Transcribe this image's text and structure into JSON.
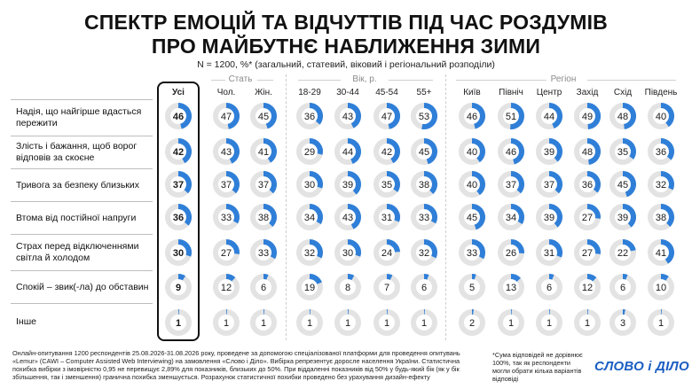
{
  "title_line1": "СПЕКТР ЕМОЦІЙ ТА ВІДЧУТТІВ ПІД ЧАС РОЗДУМІВ",
  "title_line2": "ПРО МАЙБУТНЄ НАБЛИЖЕННЯ ЗИМИ",
  "subtitle": "N = 1200, %* (загальний, статевий, віковий і регіональний розподіли)",
  "groups": {
    "sex": "Стать",
    "age": "Вік, р.",
    "region": "Регіон"
  },
  "footer_note": "Онлайн-опитування 1200 респондентів 25.08.2026-31.08.2026 року, проведене за допомогою спеціалізованої платформи для проведення опитувань «Lemur» (CAWI – Computer Assisted Web Interviewing) на замовлення «Слово і Діло». Вибірка репрезентує доросле населення України. Статистична похибка вибірки з імовірністю 0,95 не перевищує 2,89% для показників, близьких до 50%. При віддаленні показників від 50% у будь-який бік (як у бік збільшення, так і зменшення) гранична похибка зменшується. Розрахунок статистичної похибки проведено без урахування дизайн-ефекту",
  "footer_star": "*Сума відповідей не дорівнює 100%, так як респонденти могли обрати кілька варіантів відповіді",
  "logo": "СЛОВО і ДІЛО",
  "colors": {
    "accent": "#2f7fd8",
    "ring": "#e3e3e3",
    "text": "#1a1a1a"
  },
  "chart_data": {
    "type": "table",
    "columns": [
      "Усі",
      "Чол.",
      "Жін.",
      "18-29",
      "30-44",
      "45-54",
      "55+",
      "Київ",
      "Північ",
      "Центр",
      "Захід",
      "Схід",
      "Південь"
    ],
    "rows": [
      {
        "label": "Надія, що найгірше вдасться пережити",
        "values": [
          46,
          47,
          45,
          36,
          43,
          47,
          53,
          46,
          51,
          44,
          49,
          48,
          40
        ]
      },
      {
        "label": "Злість і бажання, щоб ворог відповів за скоєне",
        "values": [
          42,
          43,
          41,
          29,
          44,
          42,
          45,
          40,
          46,
          39,
          48,
          35,
          36
        ]
      },
      {
        "label": "Тривога за безпеку близьких",
        "values": [
          37,
          37,
          37,
          30,
          39,
          35,
          38,
          40,
          37,
          37,
          36,
          45,
          32
        ]
      },
      {
        "label": "Втома від постійної напруги",
        "values": [
          36,
          33,
          38,
          34,
          43,
          31,
          33,
          45,
          34,
          39,
          27,
          39,
          38
        ]
      },
      {
        "label": "Страх перед відключеннями світла й холодом",
        "values": [
          30,
          27,
          33,
          32,
          30,
          24,
          32,
          33,
          26,
          31,
          27,
          22,
          41
        ]
      },
      {
        "label": "Спокій – звик(-ла) до обставин",
        "values": [
          9,
          12,
          6,
          19,
          8,
          7,
          6,
          5,
          13,
          6,
          12,
          6,
          10
        ]
      },
      {
        "label": "Інше",
        "values": [
          1,
          1,
          1,
          1,
          1,
          1,
          1,
          2,
          1,
          1,
          1,
          3,
          1
        ]
      }
    ]
  }
}
